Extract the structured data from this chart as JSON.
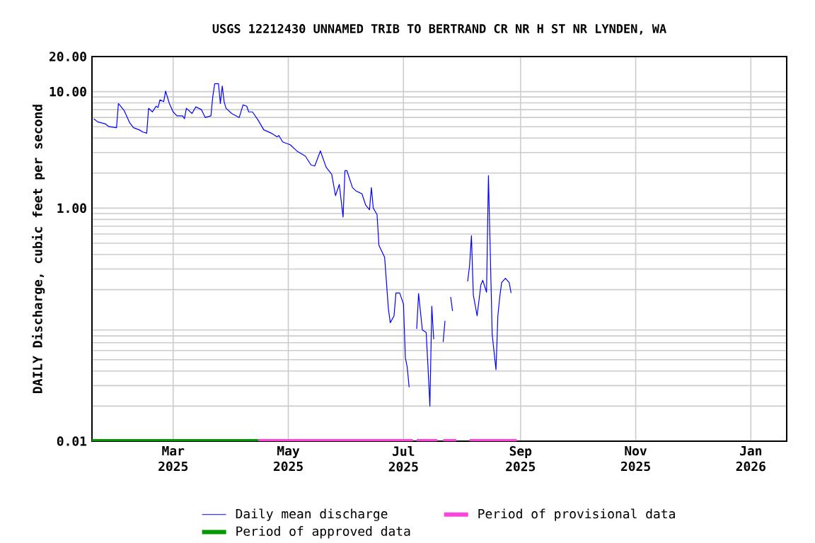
{
  "chart_data": {
    "type": "line",
    "title": "USGS 12212430 UNNAMED TRIB TO BERTRAND CR NR H ST NR LYNDEN, WA",
    "ylabel": "DAILY Discharge, cubic feet per second",
    "log": "y",
    "grid": true,
    "legend": "bottom",
    "xlim": [
      "2025-01-17",
      "2026-01-20"
    ],
    "ylim": [
      0.01,
      20
    ],
    "xticks": [
      {
        "value": "2025-03-01",
        "label": "Mar 2025"
      },
      {
        "value": "2025-05-01",
        "label": "May 2025"
      },
      {
        "value": "2025-07-01",
        "label": "Jul 2025"
      },
      {
        "value": "2025-09-01",
        "label": "Sep 2025"
      },
      {
        "value": "2025-11-01",
        "label": "Nov 2025"
      },
      {
        "value": "2026-01-01",
        "label": "Jan 2026"
      }
    ],
    "yticks": [
      {
        "value": 0.01,
        "label": "0.01"
      },
      {
        "value": 1,
        "label": "1.00"
      },
      {
        "value": 10,
        "label": "10.00"
      },
      {
        "value": 20,
        "label": "20.00"
      }
    ],
    "series": [
      {
        "name": "Daily mean discharge",
        "color": "#0000ff",
        "x": [
          "2025-01-18",
          "2025-01-20",
          "2025-01-24",
          "2025-01-26",
          "2025-01-30",
          "2025-01-31",
          "2025-02-03",
          "2025-02-06",
          "2025-02-08",
          "2025-02-11",
          "2025-02-13",
          "2025-02-15",
          "2025-02-16",
          "2025-02-18",
          "2025-02-20",
          "2025-02-21",
          "2025-02-22",
          "2025-02-24",
          "2025-02-25",
          "2025-02-27",
          "2025-03-01",
          "2025-03-03",
          "2025-03-06",
          "2025-03-07",
          "2025-03-08",
          "2025-03-11",
          "2025-03-13",
          "2025-03-16",
          "2025-03-18",
          "2025-03-21",
          "2025-03-22",
          "2025-03-23",
          "2025-03-25",
          "2025-03-26",
          "2025-03-27",
          "2025-03-28",
          "2025-03-29",
          "2025-04-01",
          "2025-04-05",
          "2025-04-07",
          "2025-04-09",
          "2025-04-10",
          "2025-04-12",
          "2025-04-15",
          "2025-04-18",
          "2025-04-22",
          "2025-04-25",
          "2025-04-26",
          "2025-04-28",
          "2025-05-02",
          "2025-05-06",
          "2025-05-10",
          "2025-05-13",
          "2025-05-15",
          "2025-05-18",
          "2025-05-21",
          "2025-05-24",
          "2025-05-26",
          "2025-05-28",
          "2025-05-30",
          "2025-05-31",
          "2025-06-01",
          "2025-06-04",
          "2025-06-06",
          "2025-06-09",
          "2025-06-11",
          "2025-06-13",
          "2025-06-14",
          "2025-06-15",
          "2025-06-17",
          "2025-06-18",
          "2025-06-21",
          "2025-06-22",
          "2025-06-23",
          "2025-06-24",
          "2025-06-26",
          "2025-06-27",
          "2025-06-29",
          "2025-07-01",
          "2025-07-02",
          "2025-07-03",
          "2025-07-04",
          "2025-07-06",
          "2025-07-08",
          "2025-07-09",
          "2025-07-11",
          "2025-07-13",
          "2025-07-14",
          "2025-07-15",
          "2025-07-16",
          "2025-07-17",
          "2025-07-19",
          "2025-07-22",
          "2025-07-23",
          "2025-07-24",
          "2025-07-26",
          "2025-07-27",
          "2025-07-31",
          "2025-08-04",
          "2025-08-05",
          "2025-08-06",
          "2025-08-07",
          "2025-08-09",
          "2025-08-11",
          "2025-08-12",
          "2025-08-14",
          "2025-08-15",
          "2025-08-16",
          "2025-08-17",
          "2025-08-19",
          "2025-08-20",
          "2025-08-21",
          "2025-08-22",
          "2025-08-24",
          "2025-08-26",
          "2025-08-27"
        ],
        "values": [
          5.85,
          5.5,
          5.3,
          5.0,
          4.9,
          7.9,
          6.9,
          5.4,
          4.9,
          4.7,
          4.5,
          4.4,
          7.2,
          6.7,
          7.5,
          7.3,
          8.5,
          8.2,
          10.1,
          7.9,
          6.7,
          6.2,
          6.2,
          5.85,
          7.2,
          6.5,
          7.4,
          7.0,
          6.0,
          6.2,
          9.1,
          11.7,
          11.7,
          7.9,
          11.2,
          8.2,
          7.2,
          6.5,
          6.0,
          7.7,
          7.5,
          6.7,
          6.7,
          5.7,
          4.7,
          4.4,
          4.1,
          4.2,
          3.7,
          3.5,
          3.05,
          2.8,
          2.35,
          2.3,
          3.1,
          2.25,
          1.95,
          1.28,
          1.6,
          0.84,
          2.1,
          2.1,
          1.5,
          1.4,
          1.33,
          1.06,
          0.97,
          1.5,
          1.0,
          0.88,
          0.48,
          0.38,
          0.23,
          0.137,
          0.104,
          0.119,
          0.187,
          0.187,
          0.15,
          0.052,
          0.043,
          0.029,
          null,
          0.092,
          0.185,
          0.09,
          0.086,
          0.043,
          0.02,
          0.144,
          0.075,
          null,
          0.071,
          0.108,
          null,
          0.173,
          0.131,
          null,
          0.235,
          0.32,
          0.58,
          0.18,
          0.119,
          0.22,
          0.24,
          0.19,
          1.9,
          0.4,
          0.082,
          0.041,
          0.119,
          0.173,
          0.23,
          0.25,
          0.23,
          0.187
        ]
      },
      {
        "name": "Period of provisional data",
        "color": "#ff44dd",
        "x": [
          "2025-04-15",
          "2025-07-06",
          "2025-07-07",
          "2025-07-08",
          "2025-07-19",
          "2025-07-20",
          "2025-07-22",
          "2025-07-29",
          "2025-07-30",
          "2025-08-05",
          "2025-08-30"
        ],
        "values": [
          0.01,
          0.01,
          null,
          0.01,
          0.01,
          null,
          0.01,
          0.01,
          null,
          0.01,
          0.01
        ]
      },
      {
        "name": "Period of approved data",
        "color": "#009900",
        "x": [
          "2025-01-17",
          "2025-04-15"
        ],
        "values": [
          0.01,
          0.01
        ]
      }
    ]
  }
}
